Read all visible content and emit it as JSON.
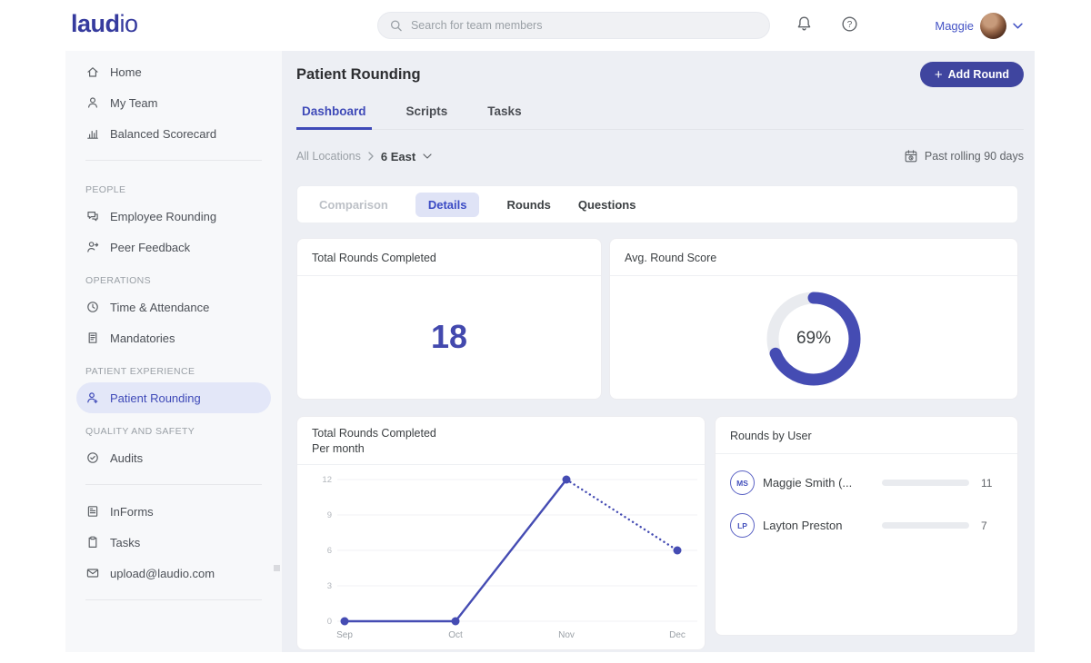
{
  "colors": {
    "primary": "#454cb3",
    "logo": "#363b9e",
    "active": "#3f4ab8",
    "selected_bg": "#e3e7f8",
    "track": "#e9ebef",
    "grid": "#f1f2f5",
    "link": "#4453c5"
  },
  "header": {
    "logo_bold": "laud",
    "logo_light": "io",
    "search_placeholder": "Search for team members",
    "user_name": "Maggie"
  },
  "sidebar": {
    "sections": [
      {
        "label": "",
        "items": [
          {
            "label": "Home",
            "icon": "home-icon"
          },
          {
            "label": "My Team",
            "icon": "team-icon"
          },
          {
            "label": "Balanced Scorecard",
            "icon": "scorecard-icon"
          }
        ],
        "divider_after": true
      },
      {
        "label": "PEOPLE",
        "items": [
          {
            "label": "Employee Rounding",
            "icon": "employee-rounding-icon"
          },
          {
            "label": "Peer Feedback",
            "icon": "peer-feedback-icon"
          }
        ]
      },
      {
        "label": "OPERATIONS",
        "items": [
          {
            "label": "Time & Attendance",
            "icon": "clock-icon"
          },
          {
            "label": "Mandatories",
            "icon": "mandatories-icon"
          }
        ]
      },
      {
        "label": "PATIENT EXPERIENCE",
        "items": [
          {
            "label": "Patient Rounding",
            "icon": "patient-rounding-icon",
            "active": true
          }
        ]
      },
      {
        "label": "QUALITY AND SAFETY",
        "items": [
          {
            "label": "Audits",
            "icon": "audits-icon"
          }
        ],
        "divider_after": true
      },
      {
        "label": "",
        "items": [
          {
            "label": "InForms",
            "icon": "informs-icon"
          },
          {
            "label": "Tasks",
            "icon": "tasks-icon"
          },
          {
            "label": "upload@laudio.com",
            "icon": "mail-icon"
          }
        ],
        "divider_after": true
      }
    ]
  },
  "main": {
    "page_title": "Patient Rounding",
    "add_round_label": "Add Round",
    "tabs": [
      {
        "label": "Dashboard",
        "active": true
      },
      {
        "label": "Scripts"
      },
      {
        "label": "Tasks"
      }
    ],
    "breadcrumb": {
      "root": "All Locations",
      "current": "6 East"
    },
    "date_filter": "Past rolling 90 days",
    "subtabs": [
      {
        "label": "Comparison",
        "disabled": true
      },
      {
        "label": "Details",
        "active": true
      },
      {
        "label": "Rounds"
      },
      {
        "label": "Questions"
      }
    ],
    "kpi": {
      "total_title": "Total Rounds Completed",
      "total_value": "18",
      "avg_title": "Avg. Round Score"
    },
    "charts": {
      "line_title_line1": "Total Rounds Completed",
      "line_title_line2": "Per month",
      "users_title": "Rounds by User"
    },
    "rounds_by_user": {
      "users": [
        {
          "initials": "MS",
          "name": "Maggie Smith (...",
          "value": 11
        },
        {
          "initials": "LP",
          "name": "Layton Preston",
          "value": 7
        }
      ]
    }
  },
  "chart_data": [
    {
      "type": "pie",
      "title": "Avg. Round Score",
      "labels": [
        "Score",
        "Remaining"
      ],
      "values": [
        69,
        31
      ],
      "percent": 69,
      "center_label": "69%",
      "colors": [
        "#454cb3",
        "#e9ebef"
      ]
    },
    {
      "type": "line",
      "title": "Total Rounds Completed Per month",
      "categories": [
        "Sep",
        "Oct",
        "Nov",
        "Dec"
      ],
      "values": [
        0,
        0,
        12,
        6
      ],
      "yticks": [
        0,
        3,
        6,
        9,
        12
      ],
      "ylim": [
        0,
        12
      ],
      "grid": true,
      "dashed_segment": {
        "from": "Nov",
        "to": "Dec"
      },
      "color": "#454cb3"
    },
    {
      "type": "bar",
      "title": "Rounds by User",
      "orientation": "horizontal",
      "categories": [
        "Maggie Smith (...",
        "Layton Preston"
      ],
      "values": [
        11,
        7
      ],
      "xlim": [
        0,
        11
      ],
      "color": "#454cb3"
    }
  ]
}
